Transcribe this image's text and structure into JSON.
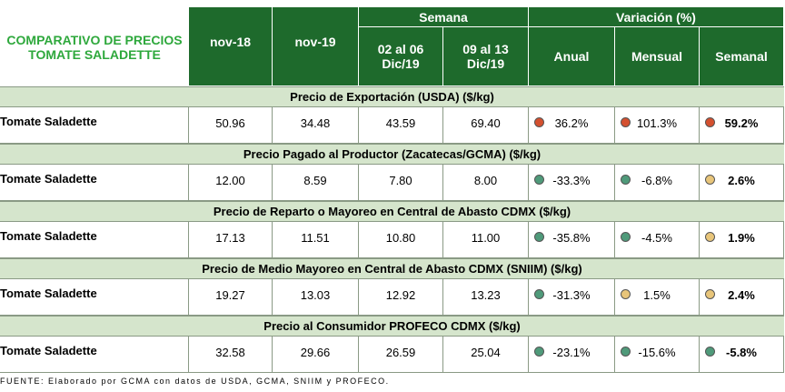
{
  "header": {
    "title": [
      "COMPARATIVO DE PRECIOS",
      "TOMATE SALADETTE"
    ],
    "groups": [
      "Semana",
      "Variación (%)"
    ],
    "columns": [
      [
        "nov-18"
      ],
      [
        "nov-19"
      ],
      [
        "02 al 06",
        "Dic/19"
      ],
      [
        "09 al 13",
        "Dic/19"
      ],
      [
        "Anual"
      ],
      [
        "Mensual"
      ],
      [
        "Semanal"
      ]
    ]
  },
  "sections": [
    {
      "heading": "Precio de Exportación  (USDA) ($/kg)",
      "label": "Tomate Saladette",
      "prices": [
        "50.96",
        "34.48",
        "43.59",
        "69.40"
      ],
      "variations": [
        "36.2%",
        "101.3%",
        "59.2%"
      ],
      "dots": [
        "#d4502f",
        "#d4502f",
        "#d4502f"
      ]
    },
    {
      "heading": "Precio Pagado al Productor (Zacatecas/GCMA) ($/kg)",
      "label": "Tomate Saladette",
      "prices": [
        "12.00",
        "8.59",
        "7.80",
        "8.00"
      ],
      "variations": [
        "-33.3%",
        "-6.8%",
        "2.6%"
      ],
      "dots": [
        "#4f9a7a",
        "#4f9a7a",
        "#e8c57a"
      ]
    },
    {
      "heading": "Precio de Reparto o Mayoreo en Central de Abasto CDMX ($/kg)",
      "label": "Tomate Saladette",
      "prices": [
        "17.13",
        "11.51",
        "10.80",
        "11.00"
      ],
      "variations": [
        "-35.8%",
        "-4.5%",
        "1.9%"
      ],
      "dots": [
        "#4f9a7a",
        "#4f9a7a",
        "#e8c57a"
      ]
    },
    {
      "heading": "Precio de Medio Mayoreo en Central de Abasto CDMX (SNIIM) ($/kg)",
      "label": "Tomate Saladette",
      "prices": [
        "19.27",
        "13.03",
        "12.92",
        "13.23"
      ],
      "variations": [
        "-31.3%",
        "1.5%",
        "2.4%"
      ],
      "dots": [
        "#4f9a7a",
        "#e8c57a",
        "#e8c57a"
      ]
    },
    {
      "heading": "Precio al Consumidor PROFECO CDMX ($/kg)",
      "label": "Tomate Saladette",
      "prices": [
        "32.58",
        "29.66",
        "26.59",
        "25.04"
      ],
      "variations": [
        "-23.1%",
        "-15.6%",
        "-5.8%"
      ],
      "dots": [
        "#4f9a7a",
        "#4f9a7a",
        "#4f9a7a"
      ]
    }
  ],
  "footnote": "FUENTE: Elaborado por GCMA con datos de USDA, GCMA, SNIIM y PROFECO."
}
